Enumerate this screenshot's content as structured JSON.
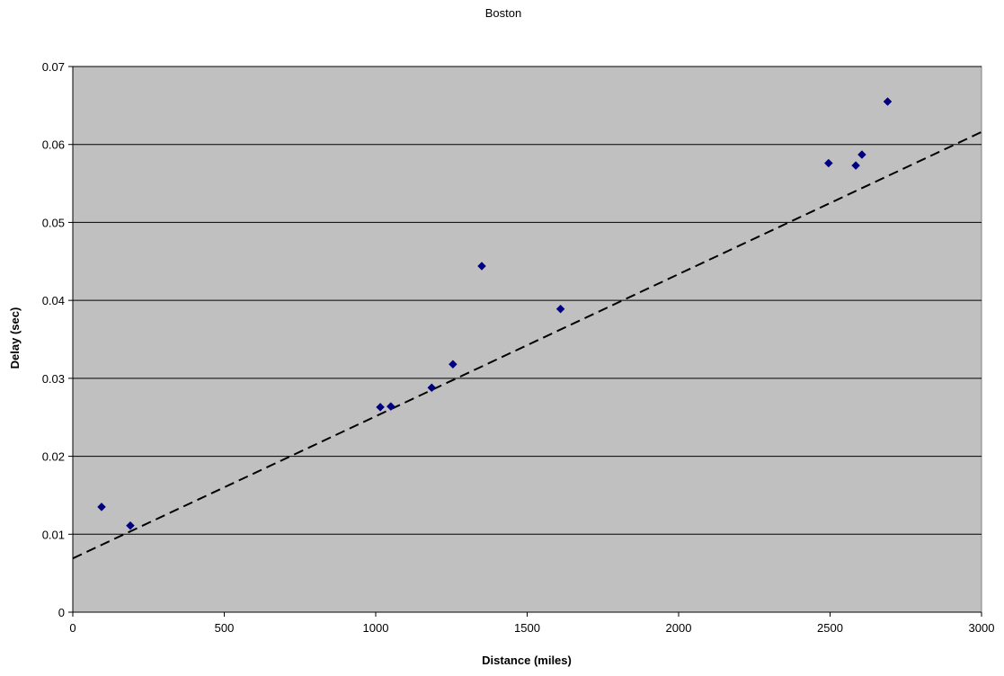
{
  "chart_data": {
    "type": "scatter",
    "title": "Boston",
    "xlabel": "Distance (miles)",
    "ylabel": "Delay (sec)",
    "xlim": [
      0,
      3000
    ],
    "ylim": [
      0,
      0.07
    ],
    "x_ticks": [
      0,
      500,
      1000,
      1500,
      2000,
      2500,
      3000
    ],
    "y_ticks": [
      0,
      0.01,
      0.02,
      0.03,
      0.04,
      0.05,
      0.06,
      0.07
    ],
    "x_tick_labels": [
      "0",
      "500",
      "1000",
      "1500",
      "2000",
      "2500",
      "3000"
    ],
    "y_tick_labels": [
      "0",
      "0.01",
      "0.02",
      "0.03",
      "0.04",
      "0.05",
      "0.06",
      "0.07"
    ],
    "grid": "horizontal",
    "legend": "none",
    "series": [
      {
        "type": "scatter",
        "marker": "diamond",
        "color": "#000080",
        "x": [
          95,
          190,
          1015,
          1050,
          1185,
          1255,
          1350,
          1610,
          2495,
          2585,
          2605,
          2690
        ],
        "y": [
          0.0135,
          0.0111,
          0.0263,
          0.0264,
          0.0288,
          0.0318,
          0.0444,
          0.0389,
          0.0576,
          0.0573,
          0.0587,
          0.0655
        ]
      },
      {
        "type": "trendline",
        "style": "dashed",
        "color": "#000000",
        "x": [
          0,
          3000
        ],
        "y": [
          0.0069,
          0.0616
        ]
      }
    ],
    "plot_background": "#c0c0c0",
    "gridline_color": "#000000"
  }
}
